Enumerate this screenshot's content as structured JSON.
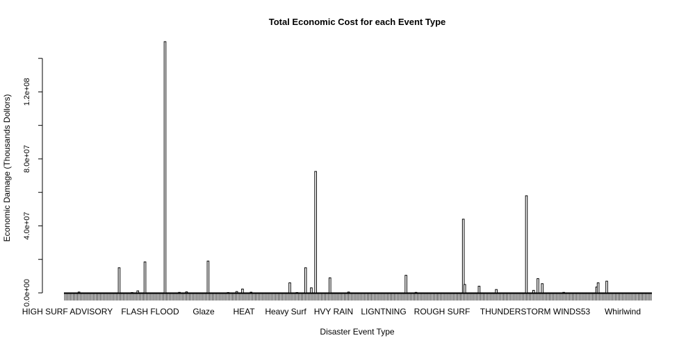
{
  "chart_data": {
    "type": "bar",
    "title": "Total Economic Cost for each Event Type",
    "xlabel": "Disaster Event Type",
    "ylabel": "Economic Damage (Thousands Dollors)",
    "ylim": [
      0,
      150000000
    ],
    "yticks": [
      0,
      40000000,
      80000000,
      120000000
    ],
    "ytick_labels": [
      "0.0e+00",
      "4.0e+07",
      "8.0e+07",
      "1.2e+08"
    ],
    "x_tick_labels": [
      "HIGH SURF ADVISORY",
      "FLASH FLOOD",
      "Glaze",
      "HEAT",
      "Heavy Surf",
      "HVY RAIN",
      "LIGNTNING",
      "ROUGH SURF",
      "THUNDERSTORM WINDS53",
      "Whirlwind"
    ],
    "category_count": 410,
    "values": [
      [
        10,
        500000
      ],
      [
        38,
        15000000
      ],
      [
        47,
        200000
      ],
      [
        51,
        1200000
      ],
      [
        56,
        18500000
      ],
      [
        70,
        150000000
      ],
      [
        80,
        300000
      ],
      [
        85,
        600000
      ],
      [
        100,
        19000000
      ],
      [
        114,
        200000
      ],
      [
        120,
        800000
      ],
      [
        124,
        2300000
      ],
      [
        130,
        400000
      ],
      [
        157,
        6000000
      ],
      [
        162,
        200000
      ],
      [
        168,
        15000000
      ],
      [
        172,
        3000000
      ],
      [
        175,
        72500000
      ],
      [
        185,
        9000000
      ],
      [
        198,
        500000
      ],
      [
        238,
        10500000
      ],
      [
        245,
        300000
      ],
      [
        278,
        44000000
      ],
      [
        279,
        5000000
      ],
      [
        289,
        4000000
      ],
      [
        301,
        2000000
      ],
      [
        322,
        58000000
      ],
      [
        327,
        1500000
      ],
      [
        330,
        8500000
      ],
      [
        333,
        5500000
      ],
      [
        348,
        300000
      ],
      [
        371,
        3500000
      ],
      [
        372,
        6000000
      ],
      [
        378,
        7000000
      ]
    ]
  }
}
